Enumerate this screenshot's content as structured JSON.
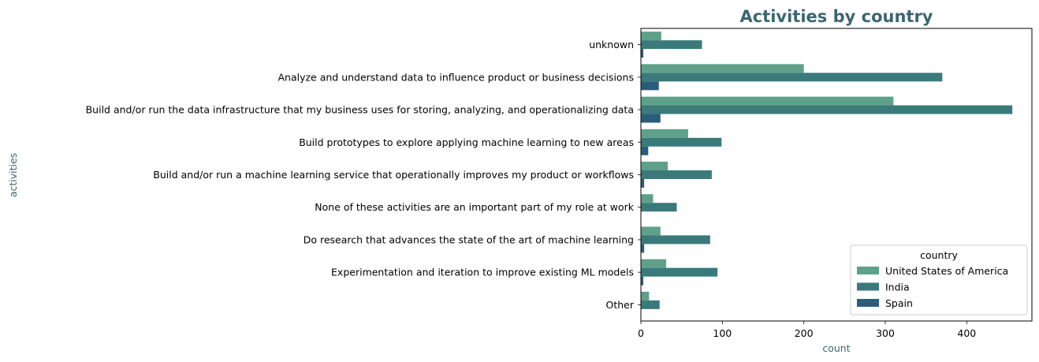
{
  "chart_data": {
    "type": "bar",
    "orientation": "horizontal",
    "title": "Activities by country",
    "xlabel": "count",
    "ylabel": "activities",
    "xlim": [
      0,
      480
    ],
    "xticks": [
      0,
      100,
      200,
      300,
      400
    ],
    "grid": false,
    "legend_placement": "lower-right",
    "legend_title": "country",
    "title_color": "#3b6670",
    "label_color": "#3b6670",
    "categories": [
      "unknown",
      "Analyze and understand data to influence product or business decisions",
      "Build and/or run the data infrastructure that my business uses for storing, analyzing, and operationalizing data",
      "Build prototypes to explore applying machine learning to new areas",
      "Build and/or run a machine learning service that operationally improves my product or workflows",
      "None of these activities are an important part of my role at work",
      "Do research that advances the state of the art of machine learning",
      "Experimentation and iteration to improve existing ML models",
      "Other"
    ],
    "series": [
      {
        "name": "United States of America",
        "color": "#5fa08a",
        "values": [
          25,
          200,
          310,
          58,
          33,
          15,
          24,
          31,
          10
        ]
      },
      {
        "name": "India",
        "color": "#3a7a7b",
        "values": [
          75,
          370,
          456,
          99,
          87,
          44,
          85,
          94,
          23
        ]
      },
      {
        "name": "Spain",
        "color": "#2b5d7b",
        "values": [
          3,
          22,
          24,
          9,
          4,
          0,
          4,
          3,
          0
        ]
      }
    ]
  }
}
